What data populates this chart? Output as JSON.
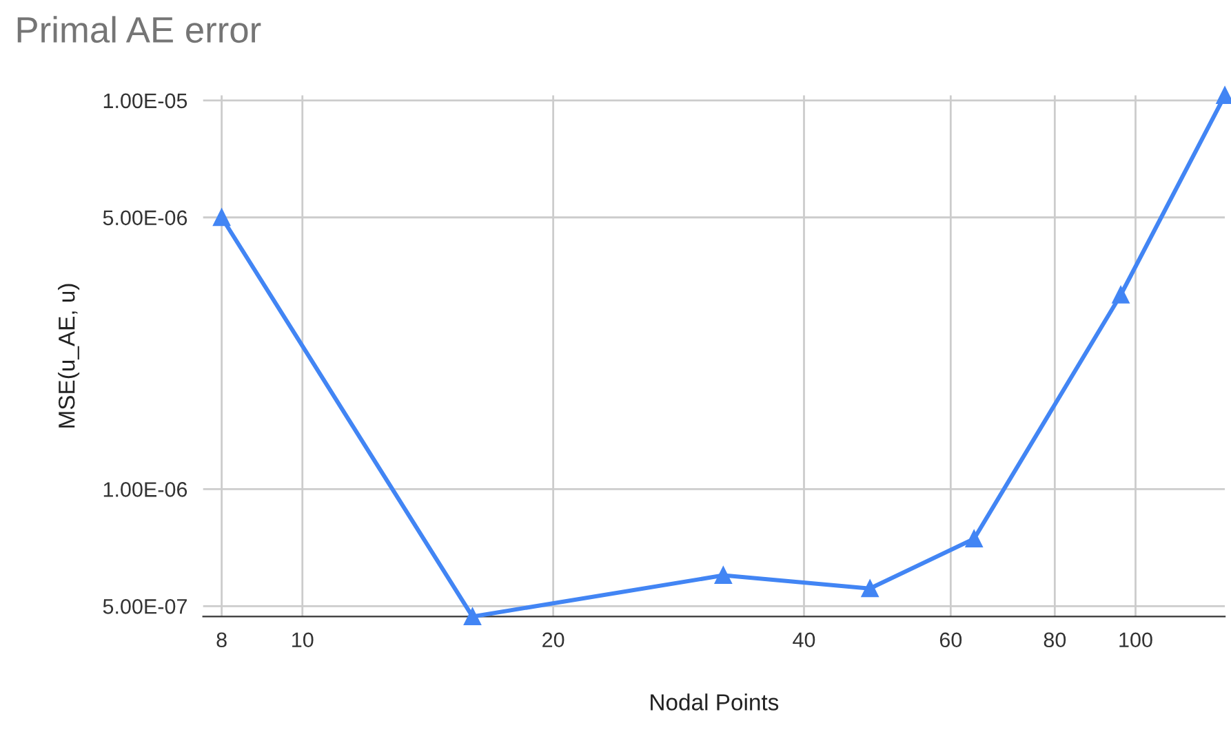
{
  "chart_data": {
    "type": "line",
    "title": "Primal AE error",
    "xlabel": "Nodal Points",
    "ylabel": "MSE(u_AE, u)",
    "x": [
      8,
      16,
      32,
      48,
      64,
      96,
      128
    ],
    "series": [
      {
        "color": "#4285f4",
        "values": [
          5e-06,
          4.7e-07,
          6e-07,
          5.55e-07,
          7.45e-07,
          3.16e-06,
          1.03e-05
        ]
      }
    ],
    "log": "xy",
    "xlim": [
      7.6,
      128
    ],
    "xticks": [
      8,
      10,
      20,
      40,
      60,
      80,
      100
    ],
    "ylim": [
      4.7e-07,
      1.03e-05
    ],
    "yticks": [
      {
        "value": 5e-07,
        "label": "5.00E-07"
      },
      {
        "value": 1e-06,
        "label": "1.00E-06"
      },
      {
        "value": 5e-06,
        "label": "5.00E-06"
      },
      {
        "value": 1e-05,
        "label": "1.00E-05"
      }
    ],
    "grid": true,
    "marker": "triangle",
    "line_style": "solid",
    "legend": false
  }
}
